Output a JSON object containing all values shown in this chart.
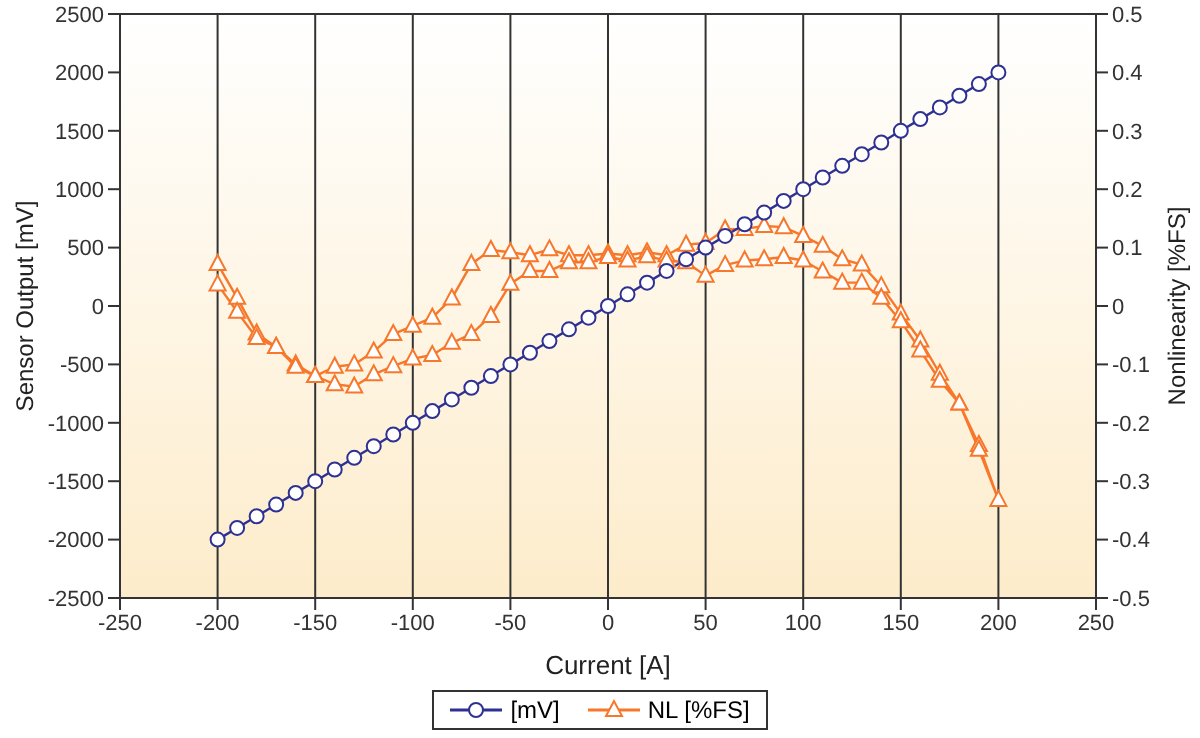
{
  "chart_data": {
    "type": "line",
    "xlabel": "Current [A]",
    "ylabel": "Sensor Output [mV]",
    "y2label": "Nonlinearity [%FS]",
    "xlim": [
      -250,
      250
    ],
    "xticks": [
      -250,
      -200,
      -150,
      -100,
      -50,
      0,
      50,
      100,
      150,
      200,
      250
    ],
    "ylim": [
      -2500,
      2500
    ],
    "yticks": [
      -2500,
      -2000,
      -1500,
      -1000,
      -500,
      0,
      500,
      1000,
      1500,
      2000,
      2500
    ],
    "y2lim": [
      -0.5,
      0.5
    ],
    "y2ticks": [
      -0.5,
      -0.4,
      -0.3,
      -0.2,
      -0.1,
      0,
      0.1,
      0.2,
      0.3,
      0.4,
      0.5
    ],
    "grid": true,
    "legend": "bottom",
    "line_style": "solid",
    "series": [
      {
        "name": "[mV]",
        "color": "#2e3192",
        "marker": "circle",
        "x": [
          -200,
          -190,
          -180,
          -170,
          -160,
          -150,
          -140,
          -130,
          -120,
          -110,
          -100,
          -90,
          -80,
          -70,
          -60,
          -50,
          -40,
          -30,
          -20,
          -10,
          0,
          10,
          20,
          30,
          40,
          50,
          60,
          70,
          80,
          90,
          100,
          110,
          120,
          130,
          140,
          150,
          160,
          170,
          180,
          190,
          200
        ],
        "values": [
          -2000,
          -1900,
          -1800,
          -1700,
          -1600,
          -1500,
          -1400,
          -1300,
          -1200,
          -1100,
          -1000,
          -900,
          -800,
          -700,
          -600,
          -500,
          -400,
          -300,
          -200,
          -100,
          0,
          100,
          200,
          300,
          400,
          500,
          600,
          700,
          800,
          900,
          1000,
          1100,
          1200,
          1300,
          1400,
          1500,
          1600,
          1700,
          1800,
          1900,
          2000
        ]
      },
      {
        "name": "NL [%FS]",
        "color": "#f7772b",
        "marker": "triangle",
        "axis": "y2",
        "x": [
          -200,
          -190,
          -180,
          -170,
          -160,
          -150,
          -140,
          -130,
          -120,
          -110,
          -100,
          -90,
          -80,
          -70,
          -60,
          -50,
          -40,
          -30,
          -20,
          -10,
          0,
          10,
          20,
          30,
          40,
          50,
          60,
          70,
          80,
          90,
          100,
          110,
          120,
          130,
          140,
          150,
          160,
          170,
          180,
          190,
          200,
          190,
          180,
          170,
          160,
          150,
          140,
          130,
          120,
          110,
          100,
          90,
          80,
          70,
          60,
          50,
          40,
          30,
          20,
          10,
          0,
          -10,
          -20,
          -30,
          -40,
          -50,
          -60,
          -70,
          -80,
          -90,
          -100,
          -110,
          -120,
          -130,
          -140,
          -150,
          -160,
          -170,
          -180,
          -190,
          -200
        ],
        "values": [
          0.072,
          0.014,
          -0.047,
          -0.07,
          -0.1,
          -0.12,
          -0.104,
          -0.1,
          -0.078,
          -0.048,
          -0.034,
          -0.02,
          0.013,
          0.072,
          0.096,
          0.092,
          0.087,
          0.097,
          0.087,
          0.087,
          0.09,
          0.087,
          0.092,
          0.087,
          0.105,
          0.108,
          0.131,
          0.132,
          0.137,
          0.135,
          0.12,
          0.103,
          0.08,
          0.071,
          0.034,
          -0.013,
          -0.059,
          -0.116,
          -0.167,
          -0.238,
          -0.332,
          -0.246,
          -0.167,
          -0.128,
          -0.076,
          -0.026,
          0.014,
          0.04,
          0.04,
          0.059,
          0.078,
          0.084,
          0.08,
          0.078,
          0.07,
          0.052,
          0.075,
          0.078,
          0.085,
          0.078,
          0.084,
          0.075,
          0.075,
          0.06,
          0.06,
          0.038,
          -0.017,
          -0.048,
          -0.063,
          -0.084,
          -0.09,
          -0.103,
          -0.117,
          -0.138,
          -0.134,
          -0.12,
          -0.104,
          -0.07,
          -0.055,
          -0.01,
          0.037
        ]
      }
    ]
  }
}
